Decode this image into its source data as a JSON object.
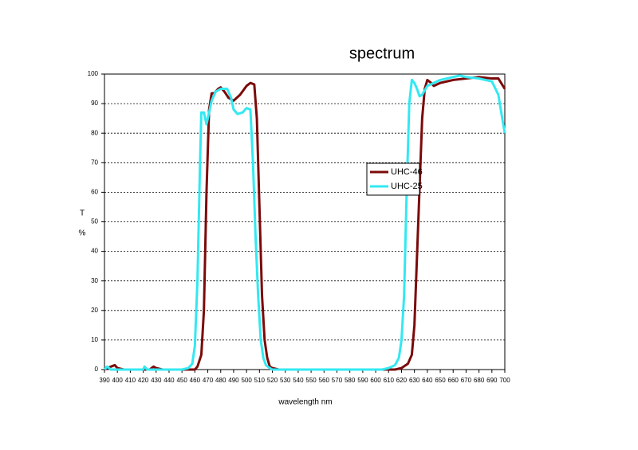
{
  "chart_data": {
    "type": "line",
    "title": "spectrum",
    "xlabel": "wavelength nm",
    "ylabel_lines": [
      "T",
      "%"
    ],
    "xlim": [
      390,
      700
    ],
    "ylim": [
      0,
      100
    ],
    "xticks": [
      390,
      400,
      410,
      420,
      430,
      440,
      450,
      460,
      470,
      480,
      490,
      500,
      510,
      520,
      530,
      540,
      550,
      560,
      570,
      580,
      590,
      600,
      610,
      620,
      630,
      640,
      650,
      660,
      670,
      680,
      690,
      700
    ],
    "yticks": [
      0,
      10,
      20,
      30,
      40,
      50,
      60,
      70,
      80,
      90,
      100
    ],
    "grid": true,
    "legend_loc": "center-right",
    "series": [
      {
        "name": "UHC-46",
        "color": "#7b0a0a",
        "x": [
          390,
          395,
          398,
          400,
          405,
          420,
          425,
          428,
          430,
          435,
          450,
          460,
          462,
          465,
          467,
          469,
          471,
          473,
          475,
          478,
          480,
          483,
          486,
          490,
          495,
          500,
          503,
          506,
          508,
          510,
          512,
          514,
          516,
          518,
          520,
          525,
          615,
          620,
          625,
          628,
          630,
          633,
          636,
          638,
          640,
          643,
          645,
          650,
          660,
          670,
          680,
          690,
          695,
          700
        ],
        "values": [
          0,
          1,
          1.5,
          0.5,
          0,
          0,
          0,
          1,
          0.5,
          0,
          0,
          0,
          1,
          5,
          20,
          60,
          88,
          93.5,
          93.5,
          95,
          95.5,
          94,
          92,
          91,
          93,
          96,
          97,
          96.5,
          85,
          55,
          25,
          10,
          4,
          1,
          0.5,
          0,
          0,
          0.5,
          2,
          5,
          15,
          50,
          85,
          95,
          98,
          97,
          96,
          97,
          98,
          98.5,
          99,
          98.5,
          98.5,
          95
        ]
      },
      {
        "name": "UHC-25",
        "color": "#33e8f2",
        "x": [
          390,
          392,
          395,
          420,
          421,
          423,
          450,
          455,
          458,
          460,
          462,
          464,
          465,
          467,
          469,
          471,
          473,
          476,
          480,
          485,
          488,
          490,
          493,
          497,
          500,
          503,
          505,
          507,
          509,
          511,
          513,
          515,
          518,
          520,
          605,
          610,
          615,
          618,
          620,
          622,
          624,
          626,
          628,
          630,
          632,
          634,
          636,
          640,
          650,
          660,
          665,
          670,
          680,
          685,
          690,
          695,
          698,
          700
        ],
        "values": [
          0,
          1,
          0,
          0,
          1,
          0,
          0,
          0.5,
          2,
          8,
          30,
          70,
          87,
          87,
          83,
          87,
          91,
          94,
          95,
          95,
          92,
          88,
          86.5,
          87,
          88.5,
          88,
          70,
          45,
          25,
          10,
          4,
          1.5,
          0.5,
          0,
          0,
          0.5,
          1.5,
          4,
          10,
          25,
          60,
          90,
          98,
          97,
          95,
          92.5,
          93,
          96,
          98,
          99,
          99.5,
          99,
          98.5,
          98,
          97.5,
          93,
          85,
          80
        ]
      }
    ]
  }
}
